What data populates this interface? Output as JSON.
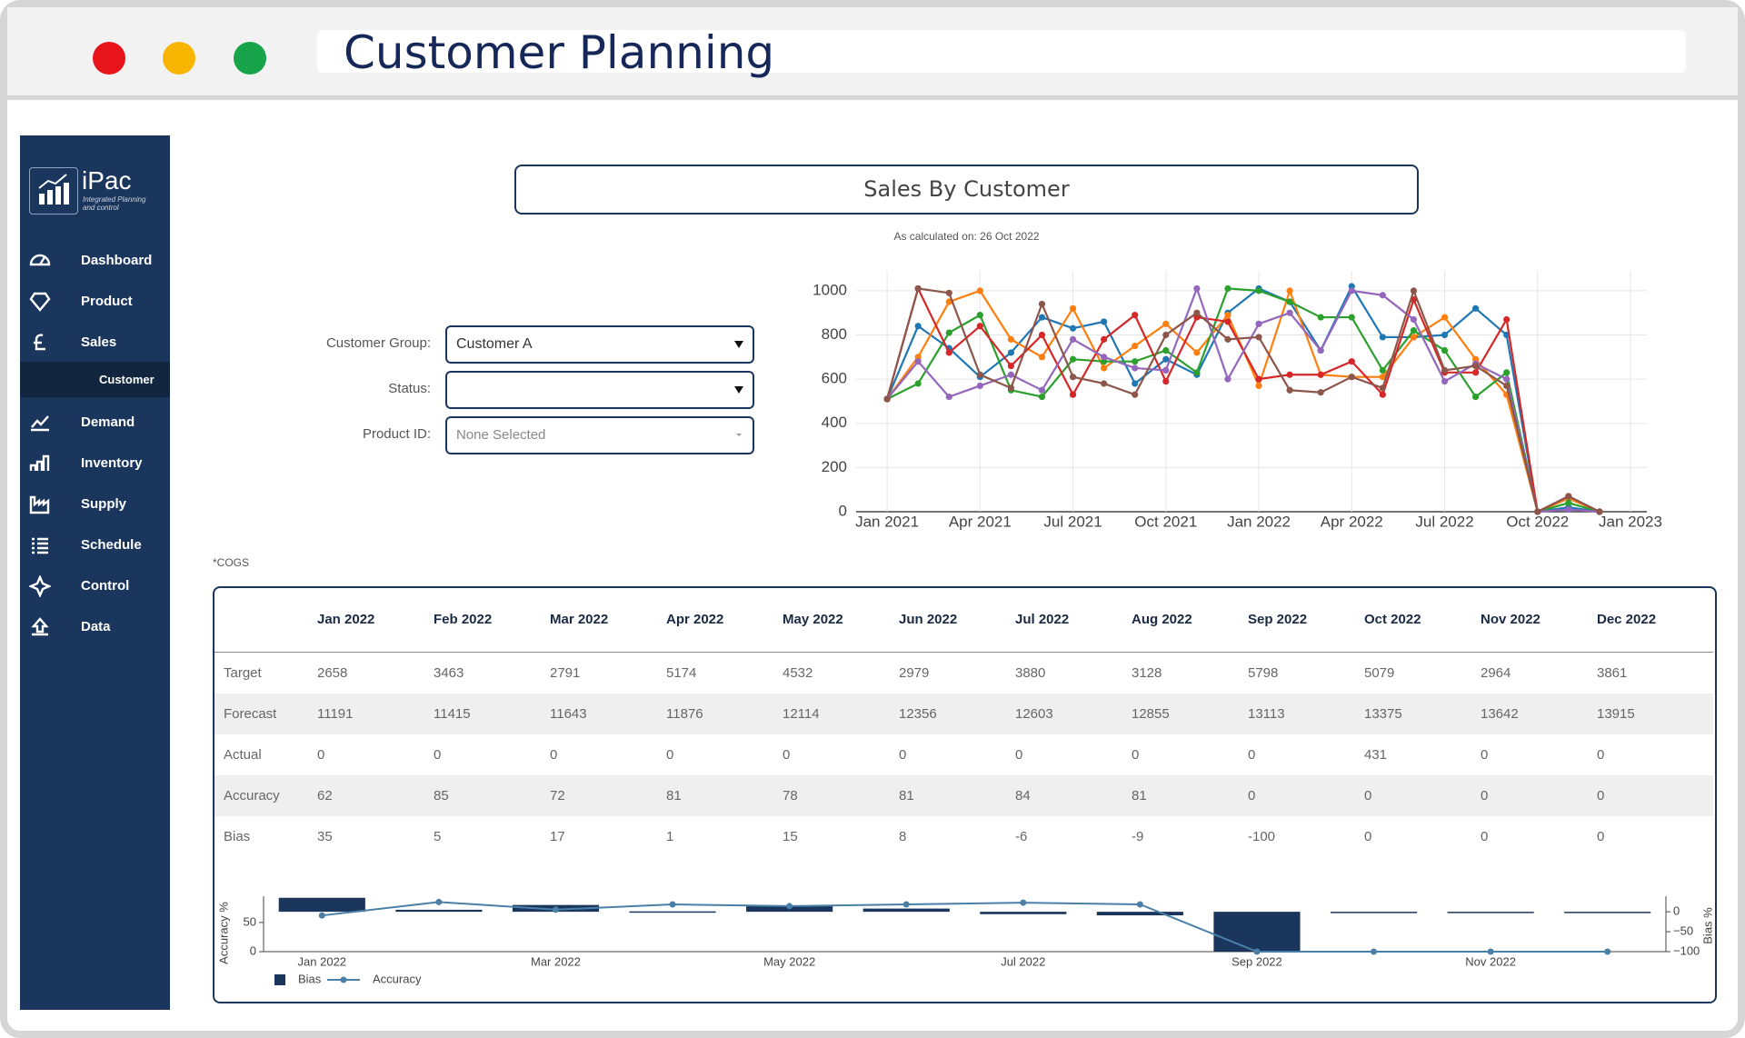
{
  "window": {
    "title": "Customer Planning"
  },
  "sidebar": {
    "brand": "iPac",
    "tagline": "Integrated Planning and control",
    "nav": [
      {
        "label": "Dashboard"
      },
      {
        "label": "Product"
      },
      {
        "label": "Sales",
        "children": [
          "Customer"
        ]
      },
      {
        "label": "Demand"
      },
      {
        "label": "Inventory"
      },
      {
        "label": "Supply"
      },
      {
        "label": "Schedule"
      },
      {
        "label": "Control"
      },
      {
        "label": "Data"
      }
    ]
  },
  "header": {
    "title": "Sales By Customer",
    "subtitle": "As calculated on: 26 Oct 2022"
  },
  "filters": [
    {
      "label": "Customer Group:",
      "value": "Customer A"
    },
    {
      "label": "Status:"
    },
    {
      "label": "Product ID:",
      "value": "None Selected"
    }
  ],
  "note": "*COGS",
  "table": {
    "columns": [
      "Jan 2022",
      "Feb 2022",
      "Mar 2022",
      "Apr 2022",
      "May 2022",
      "Jun 2022",
      "Jul 2022",
      "Aug 2022",
      "Sep 2022",
      "Oct 2022",
      "Nov 2022",
      "Dec 2022"
    ],
    "rows": [
      [
        "Target",
        2658,
        3463,
        2791,
        5174,
        4532,
        2979,
        3880,
        3128,
        5798,
        5079,
        2964,
        3861
      ],
      [
        "Forecast",
        11191,
        11415,
        11643,
        11876,
        12114,
        12356,
        12603,
        12855,
        13113,
        13375,
        13642,
        13915
      ],
      [
        "Actual",
        0,
        0,
        0,
        0,
        0,
        0,
        0,
        0,
        0,
        431,
        0,
        0
      ],
      [
        "Accuracy",
        62,
        85,
        72,
        81,
        78,
        81,
        84,
        81,
        0,
        0,
        0,
        0
      ],
      [
        "Bias",
        35,
        5,
        17,
        1,
        15,
        8,
        -6,
        -9,
        -100,
        0,
        0,
        0
      ]
    ]
  },
  "chart_data": [
    {
      "type": "line",
      "x": [
        "Jan 2021",
        "Feb 2021",
        "Mar 2021",
        "Apr 2021",
        "May 2021",
        "Jun 2021",
        "Jul 2021",
        "Aug 2021",
        "Sep 2021",
        "Oct 2021",
        "Nov 2021",
        "Dec 2021",
        "Jan 2022",
        "Feb 2022",
        "Mar 2022",
        "Apr 2022",
        "May 2022",
        "Jun 2022",
        "Jul 2022",
        "Aug 2022",
        "Sep 2022",
        "Oct 2022",
        "Nov 2022",
        "Dec 2022"
      ],
      "series": [
        {
          "color": "#1f77b4",
          "values": [
            510,
            840,
            740,
            610,
            720,
            880,
            830,
            860,
            580,
            690,
            620,
            900,
            1010,
            950,
            730,
            1020,
            790,
            790,
            800,
            920,
            800,
            0,
            20,
            0
          ]
        },
        {
          "color": "#ff7f0e",
          "values": [
            510,
            700,
            950,
            1000,
            780,
            700,
            920,
            650,
            750,
            850,
            720,
            890,
            570,
            1000,
            620,
            610,
            610,
            790,
            880,
            690,
            530,
            0,
            60,
            0
          ]
        },
        {
          "color": "#2ca02c",
          "values": [
            510,
            580,
            810,
            890,
            550,
            520,
            690,
            680,
            680,
            730,
            630,
            1010,
            1000,
            950,
            880,
            880,
            640,
            820,
            730,
            520,
            630,
            0,
            40,
            0
          ]
        },
        {
          "color": "#d62728",
          "values": [
            510,
            1010,
            720,
            840,
            660,
            800,
            530,
            780,
            890,
            590,
            880,
            860,
            600,
            620,
            620,
            680,
            530,
            960,
            630,
            630,
            870,
            0,
            70,
            0
          ]
        },
        {
          "color": "#9467bd",
          "values": [
            510,
            680,
            520,
            570,
            620,
            550,
            780,
            700,
            650,
            640,
            1010,
            600,
            850,
            900,
            730,
            1000,
            980,
            870,
            590,
            670,
            600,
            0,
            10,
            0
          ]
        },
        {
          "color": "#8c564b",
          "values": [
            510,
            1010,
            990,
            620,
            560,
            940,
            610,
            580,
            530,
            800,
            900,
            780,
            790,
            550,
            540,
            610,
            560,
            1000,
            640,
            660,
            570,
            0,
            70,
            0
          ]
        }
      ],
      "xlim": [
        "Dec 2020",
        "Jan 2023"
      ],
      "xticks": [
        "Jan 2021",
        "Apr 2021",
        "Jul 2021",
        "Oct 2021",
        "Jan 2022",
        "Apr 2022",
        "Jul 2022",
        "Oct 2022",
        "Jan 2023"
      ],
      "ylim": [
        0,
        1090
      ],
      "yticks": [
        0,
        200,
        400,
        600,
        800,
        1000
      ],
      "grid": true
    },
    {
      "type": "bar_line",
      "categories": [
        "Jan 2022",
        null,
        "Mar 2022",
        null,
        "May 2022",
        null,
        "Jul 2022",
        null,
        "Sep 2022",
        null,
        "Nov 2022",
        null
      ],
      "series": [
        {
          "name": "Bias",
          "type": "bar",
          "axis": "y2",
          "color": "#1b365d",
          "values": [
            35,
            5,
            17,
            1,
            15,
            8,
            -6,
            -9,
            -100,
            0,
            0,
            0
          ]
        },
        {
          "name": "Accuracy",
          "type": "line",
          "color": "#4a7fa7",
          "values": [
            62,
            85,
            72,
            81,
            78,
            81,
            84,
            81,
            0,
            0,
            0,
            0
          ]
        }
      ],
      "ylabel": "Accuracy %",
      "y2label": "Bias %",
      "ylim": [
        0,
        95
      ],
      "yticks": [
        0,
        50
      ],
      "y2lim": [
        -100,
        39
      ],
      "y2ticks": [
        0,
        {
          "value": -50,
          "label": "−50"
        },
        {
          "value": -100,
          "label": "−100"
        }
      ]
    }
  ]
}
